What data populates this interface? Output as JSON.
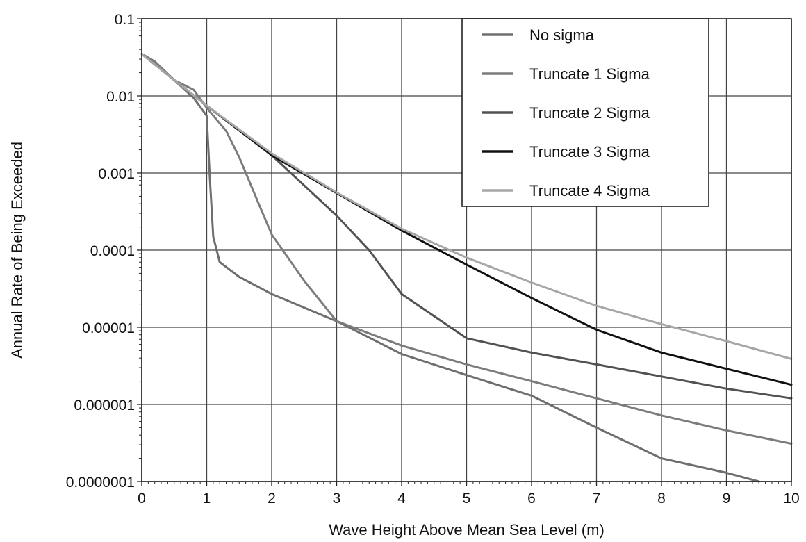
{
  "chart_data": {
    "type": "line",
    "title": "",
    "xlabel": "Wave Height Above Mean Sea Level (m)",
    "ylabel": "Annual Rate of Being Exceeded",
    "xlim": [
      0,
      10
    ],
    "ylim": [
      1e-07,
      0.1
    ],
    "yscale": "log",
    "grid": true,
    "legend_position": "top-right",
    "x_ticks": [
      0,
      1,
      2,
      3,
      4,
      5,
      6,
      7,
      8,
      9,
      10
    ],
    "x_tick_labels": [
      "0",
      "1",
      "2",
      "3",
      "4",
      "5",
      "6",
      "7",
      "8",
      "9",
      "10"
    ],
    "y_ticks": [
      0.1,
      0.01,
      0.001,
      0.0001,
      1e-05,
      1e-06,
      1e-07
    ],
    "y_tick_labels": [
      "0.1",
      "0.01",
      "0.001",
      "0.0001",
      "0.00001",
      "0.000001",
      "0.0000001"
    ],
    "series": [
      {
        "name": "No sigma",
        "color": "#6e6e6e",
        "x": [
          0,
          0.2,
          0.5,
          0.8,
          1.0,
          1.05,
          1.1,
          1.2,
          1.5,
          2,
          3,
          4,
          5,
          6,
          7,
          8,
          9,
          9.5
        ],
        "y": [
          0.035,
          0.028,
          0.016,
          0.0094,
          0.0055,
          0.0008,
          0.00015,
          7e-05,
          4.5e-05,
          2.7e-05,
          1.2e-05,
          4.5e-06,
          2.4e-06,
          1.3e-06,
          5e-07,
          2e-07,
          1.3e-07,
          1e-07
        ]
      },
      {
        "name": "Truncate 1 Sigma",
        "color": "#7c7c7c",
        "x": [
          0,
          0.2,
          0.5,
          0.8,
          1.0,
          1.3,
          1.5,
          1.8,
          2,
          2.5,
          3,
          4,
          5,
          6,
          7,
          8,
          9,
          10
        ],
        "y": [
          0.035,
          0.028,
          0.016,
          0.012,
          0.007,
          0.0035,
          0.0016,
          0.0004,
          0.00016,
          4e-05,
          1.2e-05,
          5.8e-06,
          3.3e-06,
          2e-06,
          1.2e-06,
          7.2e-07,
          4.6e-07,
          3.1e-07
        ]
      },
      {
        "name": "Truncate 2 Sigma",
        "color": "#525252",
        "x": [
          0,
          0.5,
          1,
          2,
          3,
          3.5,
          4,
          5,
          6,
          7,
          8,
          9,
          10
        ],
        "y": [
          0.035,
          0.016,
          0.0075,
          0.0017,
          0.00028,
          0.0001,
          2.7e-05,
          7.2e-06,
          4.7e-06,
          3.3e-06,
          2.3e-06,
          1.6e-06,
          1.2e-06
        ]
      },
      {
        "name": "Truncate 3 Sigma",
        "color": "#111111",
        "x": [
          0,
          0.5,
          1,
          2,
          3,
          4,
          5,
          6,
          7,
          8,
          9,
          10
        ],
        "y": [
          0.035,
          0.016,
          0.0075,
          0.0017,
          0.00055,
          0.00018,
          6.5e-05,
          2.4e-05,
          9.3e-06,
          4.7e-06,
          2.9e-06,
          1.8e-06
        ]
      },
      {
        "name": "Truncate 4 Sigma",
        "color": "#a6a6a6",
        "x": [
          0,
          0.5,
          1,
          2,
          3,
          4,
          5,
          6,
          7,
          8,
          9,
          10
        ],
        "y": [
          0.035,
          0.016,
          0.0075,
          0.0018,
          0.00056,
          0.00019,
          8e-05,
          3.8e-05,
          1.9e-05,
          1.1e-05,
          6.6e-06,
          3.9e-06
        ]
      }
    ]
  }
}
